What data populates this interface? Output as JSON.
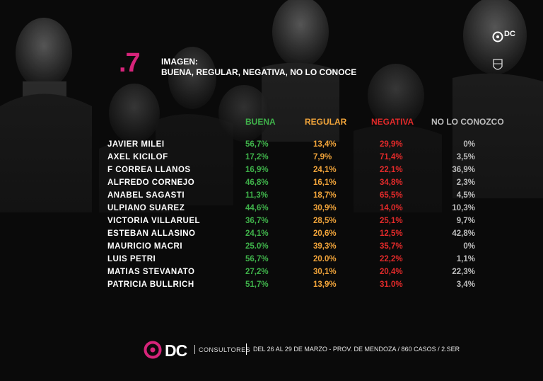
{
  "header": {
    "number": ".7",
    "title_line1": "IMAGEN:",
    "title_line2": "BUENA, REGULAR,  NEGATIVA, NO LO CONOCE"
  },
  "columns": {
    "c1": "BUENA",
    "c2": "REGULAR",
    "c3": "NEGATIVA",
    "c4": "NO LO CONOZCO"
  },
  "colors": {
    "accent": "#d6247a",
    "buena": "#3fb24a",
    "regular": "#f1a43a",
    "negativa": "#e32a2a",
    "no_conoce": "#bdbdbd"
  },
  "rows": [
    {
      "name": "JAVIER MILEI",
      "buena": "56,7%",
      "regular": "13,4%",
      "negativa": "29,9%",
      "no_conoce": "0%"
    },
    {
      "name": "AXEL KICILOF",
      "buena": "17,2%",
      "regular": "7,9%",
      "negativa": "71,4%",
      "no_conoce": "3,5%"
    },
    {
      "name": "F CORREA LLANOS",
      "buena": "16,9%",
      "regular": "24,1%",
      "negativa": "22,1%",
      "no_conoce": "36,9%"
    },
    {
      "name": "ALFREDO CORNEJO",
      "buena": "46,8%",
      "regular": "16,1%",
      "negativa": "34,8%",
      "no_conoce": "2,3%"
    },
    {
      "name": "ANABEL SAGASTI",
      "buena": "11,3%",
      "regular": "18,7%",
      "negativa": "65,5%",
      "no_conoce": "4,5%"
    },
    {
      "name": "ULPIANO SUAREZ",
      "buena": "44,6%",
      "regular": "30,9%",
      "negativa": "14,0%",
      "no_conoce": "10,3%"
    },
    {
      "name": "VICTORIA VILLARUEL",
      "buena": "36,7%",
      "regular": "28,5%",
      "negativa": "25,1%",
      "no_conoce": "9,7%"
    },
    {
      "name": "ESTEBAN ALLASINO",
      "buena": "24,1%",
      "regular": "20,6%",
      "negativa": "12,5%",
      "no_conoce": "42,8%"
    },
    {
      "name": "MAURICIO MACRI",
      "buena": "25.0%",
      "regular": "39,3%",
      "negativa": "35,7%",
      "no_conoce": "0%"
    },
    {
      "name": "LUIS PETRI",
      "buena": "56,7%",
      "regular": "20.0%",
      "negativa": "22,2%",
      "no_conoce": "1,1%"
    },
    {
      "name": "MATIAS STEVANATO",
      "buena": "27,2%",
      "regular": "30,1%",
      "negativa": "20,4%",
      "no_conoce": "22,3%"
    },
    {
      "name": "PATRICIA BULLRICH",
      "buena": "51,7%",
      "regular": "13,9%",
      "negativa": "31.0%",
      "no_conoce": "3,4%"
    }
  ],
  "footer": {
    "brand": "DC",
    "brand_sub": "CONSULTORES",
    "text": "DEL 26 AL 29 DE MARZO - PROV. DE MENDOZA / 860 CASOS / 2.SER"
  },
  "corner_logo": {
    "brand": "DC",
    "icon": "shield-seal-icon"
  }
}
